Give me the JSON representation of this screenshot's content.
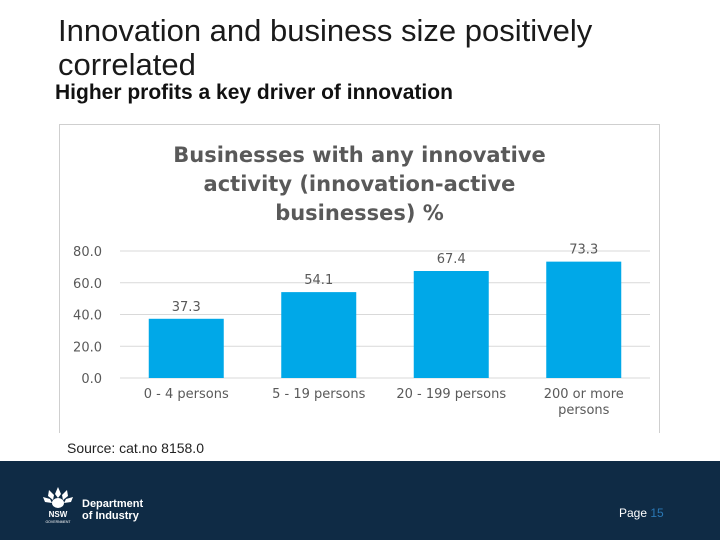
{
  "slide": {
    "title": "Innovation and business size positively correlated",
    "subtitle": "Higher profits a key driver of innovation",
    "source": "Source: cat.no 8158.0"
  },
  "footer": {
    "org_line1": "Department",
    "org_line2": "of Industry",
    "logo_text": "NSW",
    "logo_subtext": "GOVERNMENT",
    "page_label": "Page",
    "page_number": "15"
  },
  "colors": {
    "bar": "#00a8e8",
    "footer_bg": "#0f2b45"
  },
  "chart_data": {
    "type": "bar",
    "title_lines": [
      "Businesses with any innovative",
      "activity (innovation-active",
      "businesses) %"
    ],
    "categories": [
      [
        "0 - 4 persons"
      ],
      [
        "5 - 19 persons"
      ],
      [
        "20 - 199 persons"
      ],
      [
        "200 or more",
        "persons"
      ]
    ],
    "values": [
      37.3,
      54.1,
      67.4,
      73.3
    ],
    "value_labels": [
      "37.3",
      "54.1",
      "67.4",
      "73.3"
    ],
    "yticks": [
      "0.0",
      "20.0",
      "40.0",
      "60.0",
      "80.0"
    ],
    "ylim": [
      0,
      80
    ],
    "xlabel": "",
    "ylabel": "",
    "grid": true,
    "legend": "none"
  }
}
